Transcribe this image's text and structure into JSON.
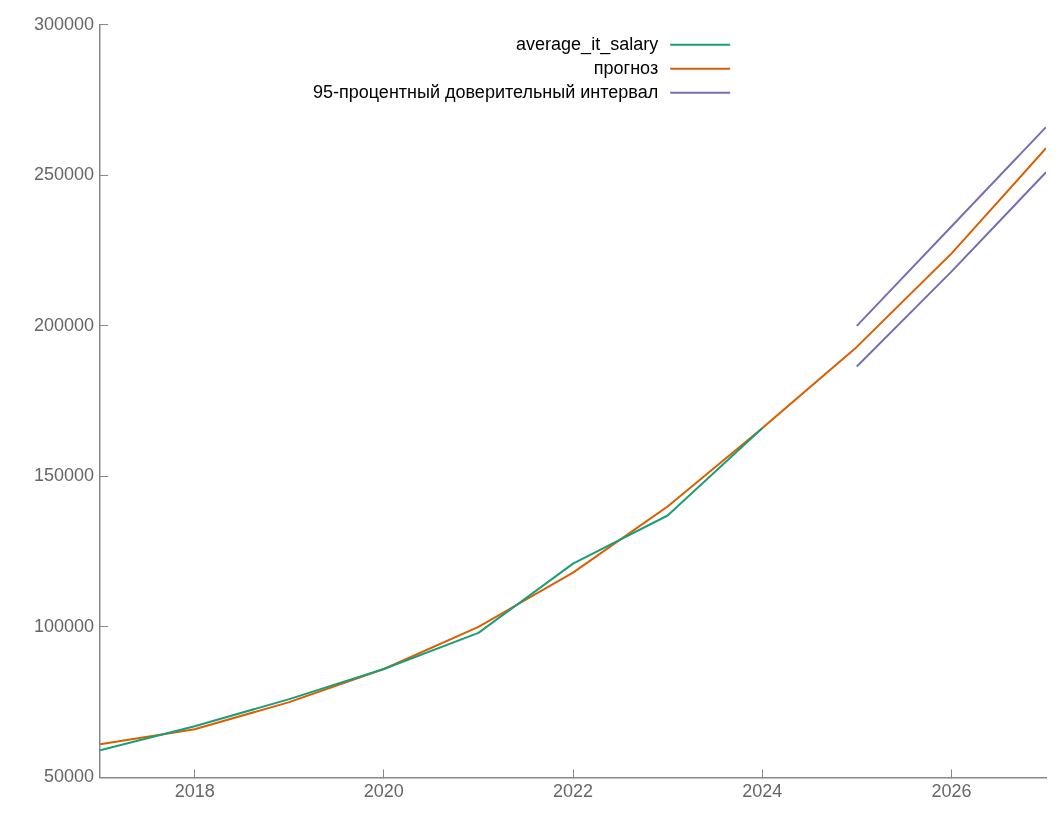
{
  "chart_data": {
    "type": "line",
    "xlim": [
      2017,
      2027
    ],
    "xticks": [
      2018,
      2020,
      2022,
      2024,
      2026
    ],
    "ylim": [
      50000,
      300000
    ],
    "yticks": [
      50000,
      100000,
      150000,
      200000,
      250000,
      300000
    ],
    "grid": false,
    "legend": "top",
    "marker": "none",
    "line_style": "solid",
    "series": [
      {
        "name": "average_it_salary",
        "color": "#1b9e77",
        "x": [
          2017,
          2018,
          2019,
          2020,
          2021,
          2022,
          2023,
          2024
        ],
        "values": [
          59000,
          67000,
          76000,
          86000,
          98000,
          121000,
          137000,
          166000
        ]
      },
      {
        "name": "прогноз",
        "color": "#d95f02",
        "x": [
          2017,
          2018,
          2019,
          2020,
          2021,
          2022,
          2023,
          2024,
          2025,
          2026,
          2027
        ],
        "values": [
          61000,
          66000,
          75000,
          86000,
          100000,
          118000,
          140000,
          166000,
          193000,
          224000,
          259000
        ]
      },
      {
        "name": "95-процентный доверительный интервал",
        "color": "#7570b3",
        "x": [
          2025,
          2026,
          2027
        ],
        "values": [
          200000,
          233000,
          266000
        ]
      },
      {
        "color": "#7570b3",
        "x": [
          2025,
          2026,
          2027
        ],
        "values": [
          186500,
          218000,
          251000
        ]
      }
    ]
  }
}
